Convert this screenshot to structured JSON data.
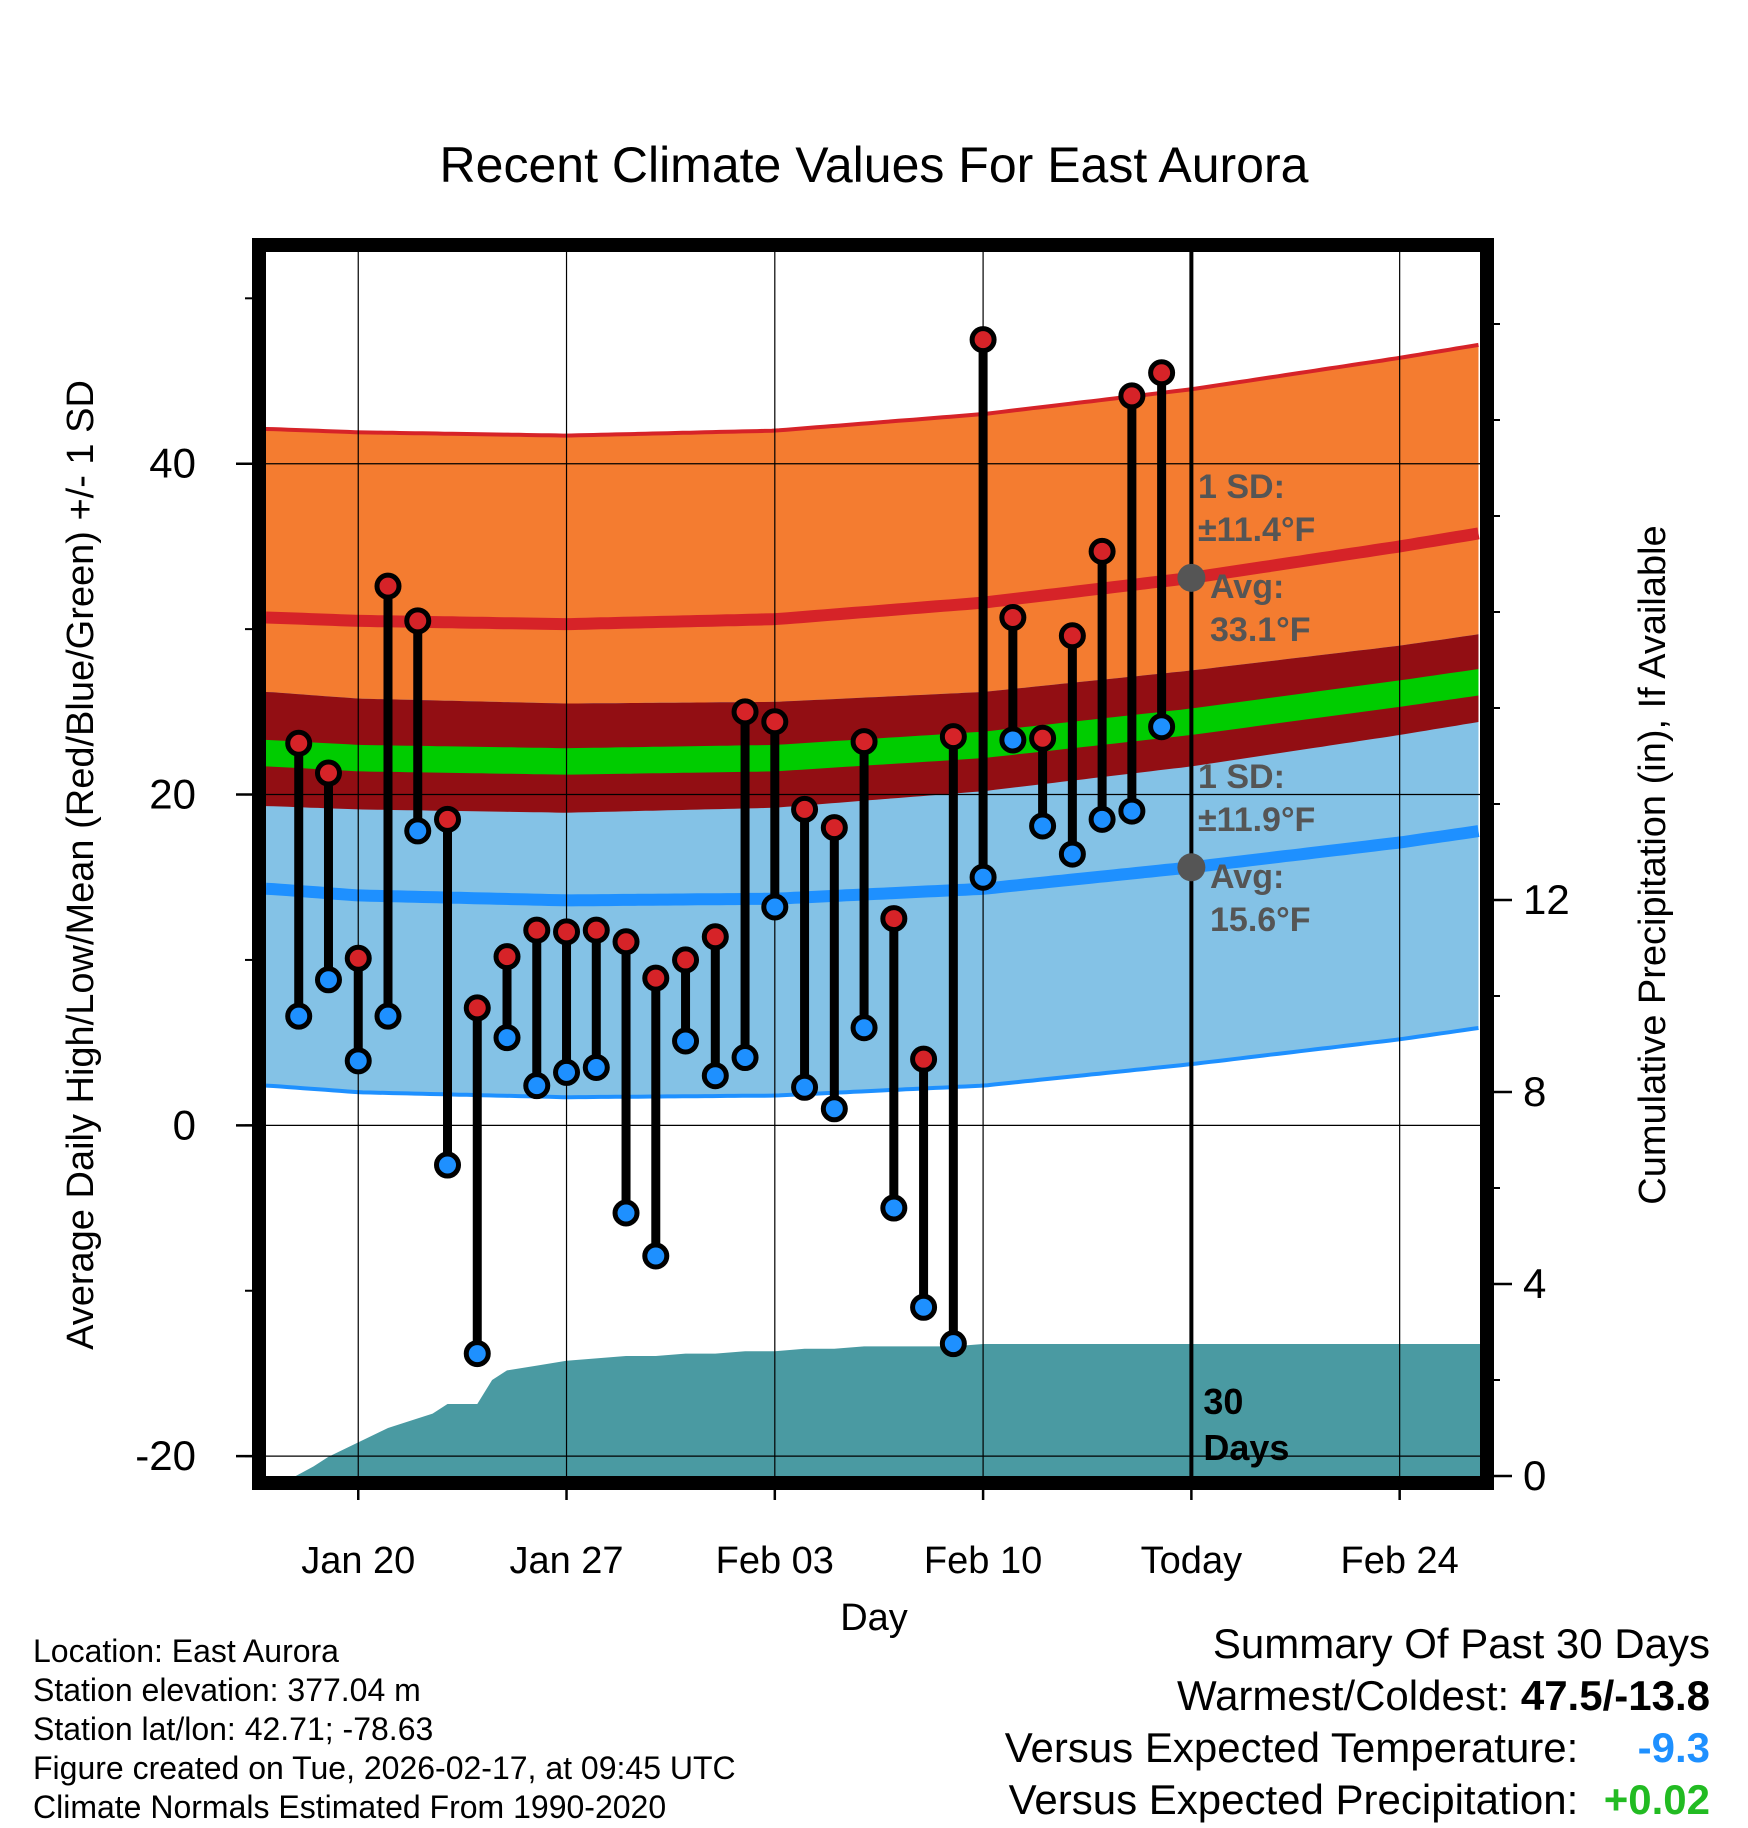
{
  "chart_data": {
    "type": "line",
    "title": "Recent Climate Values For East Aurora",
    "xlabel": "Day",
    "ylabel": "Average Daily High/Low/Mean (Red/Blue/Green) +/- 1 SD",
    "y2label": "Cumulative Precipitation (in), If Available",
    "x_tick_labels": [
      "Jan 20",
      "Jan 27",
      "Feb 03",
      "Feb 10",
      "Today",
      "Feb 24"
    ],
    "x_tick_days": [
      20,
      27,
      34,
      41,
      48,
      55
    ],
    "xlim": [
      16.9,
      57.7
    ],
    "ylim": [
      -21.2,
      52.8
    ],
    "y_ticks": [
      -20,
      0,
      20,
      40
    ],
    "y2lim": [
      0,
      25.5
    ],
    "y2_ticks": [
      0,
      4,
      8,
      12
    ],
    "today_day": 48,
    "today_label": "30\nDays",
    "normal_days": [
      17,
      20,
      27,
      34,
      41,
      48,
      55,
      57.7
    ],
    "normal_high": [
      30.7,
      30.5,
      30.3,
      30.6,
      31.6,
      33.1,
      35.0,
      35.8
    ],
    "normal_low": [
      14.3,
      13.9,
      13.6,
      13.7,
      14.3,
      15.6,
      17.1,
      17.8
    ],
    "normal_mean": [
      22.5,
      22.2,
      22.0,
      22.2,
      23.0,
      24.4,
      26.1,
      26.8
    ],
    "high_sd": 11.4,
    "low_sd": 11.9,
    "mean_band_halfwidth": 0.8,
    "annotations": {
      "high_sd_label": "1 SD:",
      "high_sd_value": "±11.4°F",
      "high_avg_label": "Avg:",
      "high_avg_value": "33.1°F",
      "low_sd_label": "1 SD:",
      "low_sd_value": "±11.9°F",
      "low_avg_label": "Avg:",
      "low_avg_value": "15.6°F"
    },
    "series": [
      {
        "name": "Daily High",
        "days": [
          18,
          19,
          20,
          21,
          22,
          23,
          24,
          25,
          26,
          27,
          28,
          29,
          30,
          31,
          32,
          33,
          34,
          35,
          36,
          37,
          38,
          39,
          40,
          41,
          42,
          43,
          44,
          45,
          46,
          47
        ],
        "values": [
          23.1,
          21.3,
          10.1,
          32.6,
          30.5,
          18.5,
          7.1,
          10.2,
          11.8,
          11.7,
          11.8,
          11.1,
          8.9,
          10.0,
          11.4,
          25.0,
          24.4,
          19.1,
          18.0,
          23.2,
          12.5,
          4.0,
          23.5,
          47.5,
          30.7,
          23.4,
          29.6,
          34.7,
          44.1,
          45.5
        ]
      },
      {
        "name": "Daily Low",
        "days": [
          18,
          19,
          20,
          21,
          22,
          23,
          24,
          25,
          26,
          27,
          28,
          29,
          30,
          31,
          32,
          33,
          34,
          35,
          36,
          37,
          38,
          39,
          40,
          41,
          42,
          43,
          44,
          45,
          46,
          47
        ],
        "values": [
          6.6,
          8.8,
          3.9,
          6.6,
          17.8,
          -2.4,
          -13.8,
          5.3,
          2.4,
          3.2,
          3.5,
          -5.3,
          -7.9,
          5.1,
          3.0,
          4.1,
          13.2,
          2.3,
          1.0,
          5.9,
          -5.0,
          -11.0,
          -13.2,
          15.0,
          23.3,
          18.1,
          16.4,
          18.5,
          19.0,
          24.1
        ]
      },
      {
        "name": "Cumulative Precipitation",
        "days": [
          17.9,
          18.5,
          19,
          20,
          21,
          22,
          22.5,
          23,
          23.5,
          24,
          24.5,
          25,
          26,
          27,
          28,
          29,
          30,
          31,
          32,
          33,
          34,
          35,
          36,
          37,
          38,
          39,
          40,
          41,
          42,
          43,
          44,
          45,
          46,
          47,
          48,
          55,
          57.7
        ],
        "values": [
          0,
          0.2,
          0.4,
          0.7,
          1.0,
          1.2,
          1.3,
          1.5,
          1.5,
          1.5,
          2.0,
          2.2,
          2.3,
          2.4,
          2.45,
          2.5,
          2.5,
          2.55,
          2.55,
          2.6,
          2.6,
          2.65,
          2.65,
          2.7,
          2.7,
          2.7,
          2.7,
          2.75,
          2.75,
          2.75,
          2.75,
          2.75,
          2.75,
          2.75,
          2.75,
          2.75,
          2.75
        ]
      }
    ]
  },
  "info": {
    "location": "Location: East Aurora",
    "elevation": "Station elevation: 377.04 m",
    "latlon": "Station lat/lon: 42.71; -78.63",
    "created": "Figure created on Tue, 2026-02-17, at 09:45 UTC",
    "normals": "Climate Normals Estimated From 1990-2020"
  },
  "summary": {
    "title": "Summary Of Past 30 Days",
    "warm_cold_label": "Warmest/Coldest:",
    "warm_cold_value": "47.5/-13.8",
    "temp_label": "Versus Expected Temperature:",
    "temp_value": "-9.3",
    "precip_label": "Versus Expected Precipitation:",
    "precip_value": "+0.02"
  },
  "colors": {
    "high_band": "#f47c30",
    "high_line": "#d62328",
    "mean_band": "#920e13",
    "mean_line": "#00cc00",
    "low_band": "#84c2e6",
    "low_line": "#1e90ff",
    "precip": "#4a9aa2",
    "high_dot": "#d62328",
    "low_dot": "#1e90ff",
    "annotation": "#555555",
    "temp_delta": "#1e90ff",
    "precip_delta": "#22bb22"
  }
}
